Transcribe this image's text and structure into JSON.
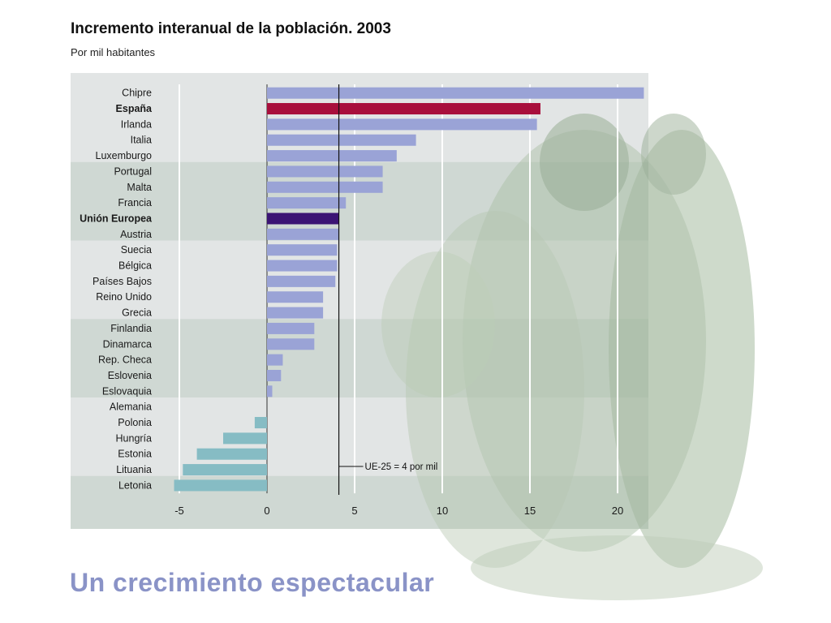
{
  "title": "Incremento interanual de la población. 2003",
  "subtitle": "Por mil habitantes",
  "caption": "Un crecimiento espectacular",
  "colors": {
    "positive": "#9aa3d6",
    "negative": "#86bcc4",
    "highlight_spain": "#a80f3c",
    "highlight_eu": "#3b1474",
    "band_light": "#e2e5e5",
    "band_dark": "#cfd8d3",
    "figures": "#9fb59a"
  },
  "chart_data": {
    "type": "bar",
    "orientation": "horizontal",
    "title": "Incremento interanual de la población. 2003",
    "subtitle": "Por mil habitantes",
    "categories": [
      "Chipre",
      "España",
      "Irlanda",
      "Italia",
      "Luxemburgo",
      "Portugal",
      "Malta",
      "Francia",
      "Unión Europea",
      "Austria",
      "Suecia",
      "Bélgica",
      "Países Bajos",
      "Reino Unido",
      "Grecia",
      "Finlandia",
      "Dinamarca",
      "Rep. Checa",
      "Eslovenia",
      "Eslovaquia",
      "Alemania",
      "Polonia",
      "Hungría",
      "Estonia",
      "Lituania",
      "Letonia"
    ],
    "values": [
      21.5,
      15.6,
      15.4,
      8.5,
      7.4,
      6.6,
      6.6,
      4.5,
      4.1,
      4.1,
      4.0,
      4.0,
      3.9,
      3.2,
      3.2,
      2.7,
      2.7,
      0.9,
      0.8,
      0.3,
      0.0,
      -0.7,
      -2.5,
      -4.0,
      -4.8,
      -5.3
    ],
    "bold_categories": [
      "España",
      "Unión Europea"
    ],
    "xlim": [
      -5.5,
      22
    ],
    "xticks": [
      -5,
      0,
      5,
      10,
      15,
      20
    ],
    "grid": true,
    "reference_line": {
      "value": 4.1,
      "label": "UE-25 = 4 por mil"
    }
  }
}
